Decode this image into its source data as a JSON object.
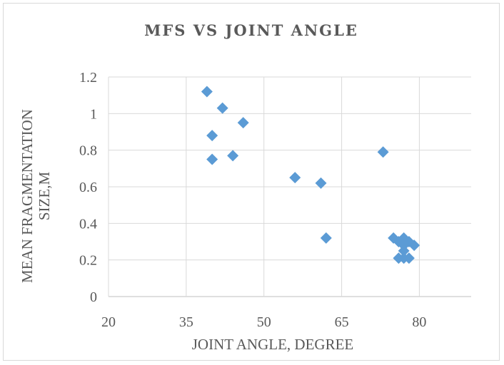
{
  "chart_data": {
    "type": "scatter",
    "title": "MFS VS JOINT ANGLE",
    "xlabel": "JOINT ANGLE, DEGREE",
    "ylabel_lines": [
      "MEAN FRAGMENTATION",
      "SIZE,M"
    ],
    "xlim": [
      20,
      90
    ],
    "ylim": [
      0,
      1.2
    ],
    "xticks": [
      20,
      35,
      50,
      65,
      80
    ],
    "yticks": [
      0,
      0.2,
      0.4,
      0.6,
      0.8,
      1,
      1.2
    ],
    "xtick_labels": [
      "20",
      "35",
      "50",
      "65",
      "80"
    ],
    "ytick_labels": [
      "0",
      "0.2",
      "0.4",
      "0.6",
      "0.8",
      "1",
      "1.2"
    ],
    "grid": true,
    "legend": "none",
    "marker": "diamond",
    "color": "#5b9bd5",
    "points": [
      {
        "x": 39,
        "y": 1.12
      },
      {
        "x": 42,
        "y": 1.03
      },
      {
        "x": 40,
        "y": 0.88
      },
      {
        "x": 46,
        "y": 0.95
      },
      {
        "x": 40,
        "y": 0.75
      },
      {
        "x": 44,
        "y": 0.77
      },
      {
        "x": 56,
        "y": 0.65
      },
      {
        "x": 61,
        "y": 0.62
      },
      {
        "x": 62,
        "y": 0.32
      },
      {
        "x": 73,
        "y": 0.79
      },
      {
        "x": 75,
        "y": 0.32
      },
      {
        "x": 76,
        "y": 0.3
      },
      {
        "x": 77,
        "y": 0.32
      },
      {
        "x": 77,
        "y": 0.28
      },
      {
        "x": 78,
        "y": 0.3
      },
      {
        "x": 79,
        "y": 0.28
      },
      {
        "x": 76,
        "y": 0.21
      },
      {
        "x": 77,
        "y": 0.21
      },
      {
        "x": 78,
        "y": 0.21
      },
      {
        "x": 77,
        "y": 0.25
      }
    ]
  }
}
